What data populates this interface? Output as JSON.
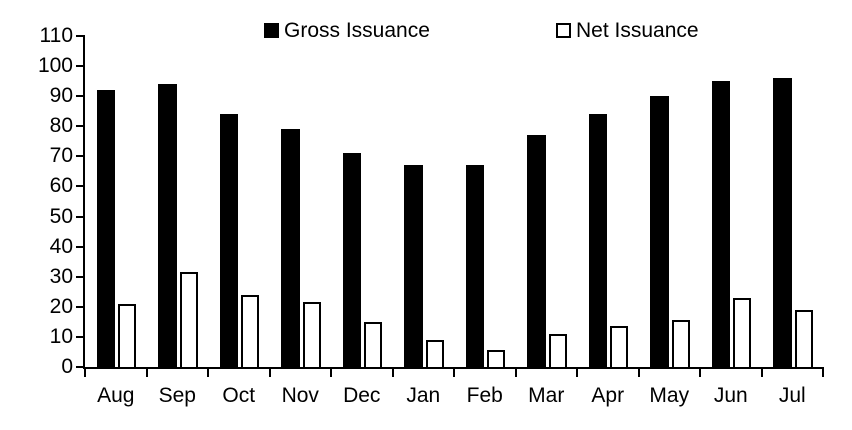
{
  "chart_data": {
    "type": "bar",
    "categories": [
      "Aug",
      "Sep",
      "Oct",
      "Nov",
      "Dec",
      "Jan",
      "Feb",
      "Mar",
      "Apr",
      "May",
      "Jun",
      "Jul"
    ],
    "series": [
      {
        "name": "Gross Issuance",
        "fill": "#000000",
        "values": [
          92,
          94,
          84,
          79,
          71,
          67,
          67,
          77,
          84,
          90,
          95,
          96
        ]
      },
      {
        "name": "Net Issuance",
        "fill": "#ffffff",
        "outline": "#000000",
        "values": [
          21,
          31.5,
          24,
          21.5,
          15,
          9,
          5.5,
          11,
          13.5,
          15.5,
          23,
          19
        ]
      }
    ],
    "title": "",
    "xlabel": "",
    "ylabel": "",
    "ylim": [
      0,
      110
    ],
    "ytick_step": 10,
    "yticks": [
      0,
      10,
      20,
      30,
      40,
      50,
      60,
      70,
      80,
      90,
      100,
      110
    ],
    "grid": false,
    "legend_position": "top"
  },
  "colors": {
    "background": "#ffffff",
    "axis": "#000000",
    "text": "#000000",
    "gross_bar": "#000000",
    "net_bar_fill": "#ffffff",
    "net_bar_outline": "#000000"
  }
}
